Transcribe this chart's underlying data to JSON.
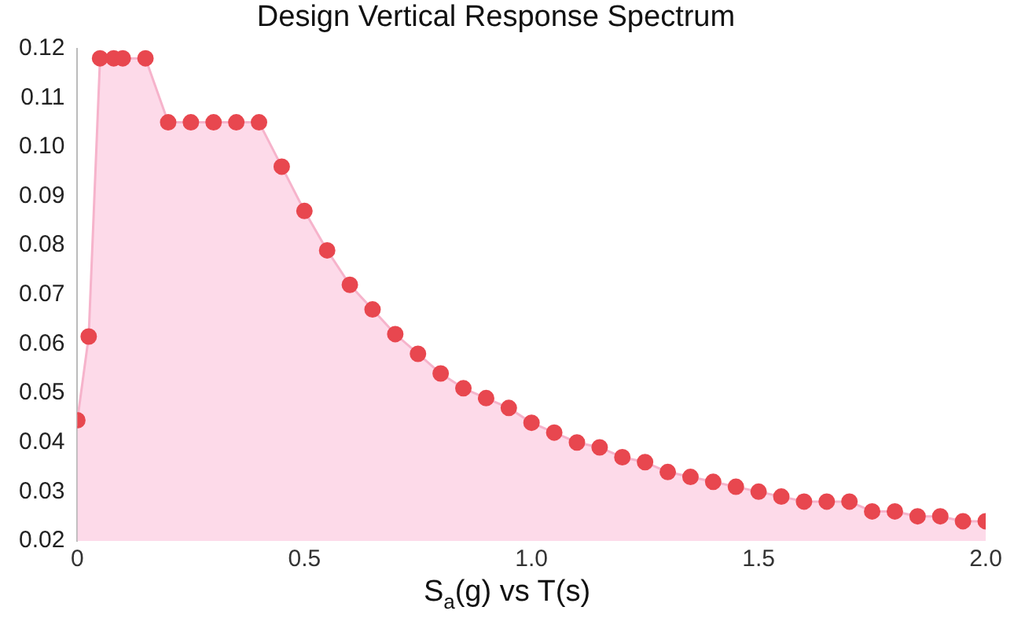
{
  "chart_data": {
    "type": "area",
    "title": "Design Vertical Response Spectrum",
    "xlabel": "S$_{a}$(g) vs T(s)",
    "x": [
      0,
      0.025,
      0.05,
      0.08,
      0.1,
      0.15,
      0.2,
      0.25,
      0.3,
      0.35,
      0.4,
      0.45,
      0.5,
      0.55,
      0.6,
      0.65,
      0.7,
      0.75,
      0.8,
      0.85,
      0.9,
      0.95,
      1.0,
      1.05,
      1.1,
      1.15,
      1.2,
      1.25,
      1.3,
      1.35,
      1.4,
      1.45,
      1.5,
      1.55,
      1.6,
      1.65,
      1.7,
      1.75,
      1.8,
      1.85,
      1.9,
      1.95,
      2.0
    ],
    "series": [
      {
        "color": "#e8474f",
        "values": [
          0.0445,
          0.0615,
          0.118,
          0.118,
          0.118,
          0.118,
          0.105,
          0.105,
          0.105,
          0.105,
          0.105,
          0.096,
          0.087,
          0.079,
          0.072,
          0.067,
          0.062,
          0.058,
          0.054,
          0.051,
          0.049,
          0.047,
          0.044,
          0.042,
          0.04,
          0.039,
          0.037,
          0.036,
          0.034,
          0.033,
          0.032,
          0.031,
          0.03,
          0.029,
          0.028,
          0.028,
          0.028,
          0.026,
          0.026,
          0.025,
          0.025,
          0.024,
          0.024
        ]
      }
    ],
    "xlim": [
      0,
      2.0
    ],
    "xticks": [
      0,
      0.5,
      {
        "value": 1,
        "label": "1.0"
      },
      1.5,
      {
        "value": 2,
        "label": "2.0"
      }
    ],
    "ylim": [
      0.02,
      0.12
    ],
    "yticks": [
      {
        "value": 0.02,
        "label": "0.02"
      },
      {
        "value": 0.03,
        "label": "0.03"
      },
      {
        "value": 0.04,
        "label": "0.04"
      },
      {
        "value": 0.05,
        "label": "0.05"
      },
      {
        "value": 0.06,
        "label": "0.06"
      },
      {
        "value": 0.07,
        "label": "0.07"
      },
      {
        "value": 0.08,
        "label": "0.08"
      },
      {
        "value": 0.09,
        "label": "0.09"
      },
      {
        "value": 0.1,
        "label": "0.10"
      },
      {
        "value": 0.11,
        "label": "0.11"
      },
      {
        "value": 0.12,
        "label": "0.12"
      }
    ],
    "grid": false,
    "legend": false,
    "marker": "circle"
  }
}
